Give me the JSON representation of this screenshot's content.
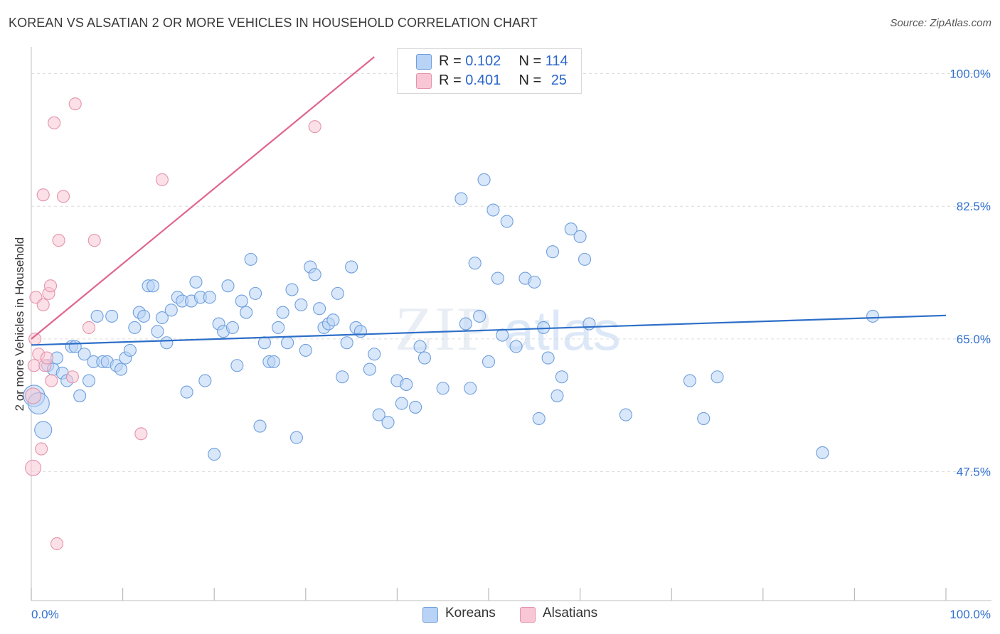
{
  "header": {
    "title": "KOREAN VS ALSATIAN 2 OR MORE VEHICLES IN HOUSEHOLD CORRELATION CHART",
    "source": "Source: ZipAtlas.com"
  },
  "legend": {
    "rows": [
      {
        "r_label": "R =",
        "r_value": "0.102",
        "n_label": "N =",
        "n_value": "114"
      },
      {
        "r_label": "R =",
        "r_value": "0.401",
        "n_label": "N =",
        "n_value": "25"
      }
    ]
  },
  "colors": {
    "korean_fill": "#b8d3f5",
    "korean_stroke": "#6f9fdc",
    "korean_line": "#2d6fc8",
    "alsatian_fill": "#f8c6d4",
    "alsatian_stroke": "#e493ac",
    "alsatian_line": "#e0658d",
    "tick_label": "#2f6fd0",
    "grid": "#dcdcdc"
  },
  "chart_data": {
    "type": "scatter",
    "title": "KOREAN VS ALSATIAN 2 OR MORE VEHICLES IN HOUSEHOLD CORRELATION CHART",
    "xlabel": "",
    "ylabel": "2 or more Vehicles in Household",
    "x_tick_labels": [
      "0.0%",
      "100.0%"
    ],
    "y_tick_labels": [
      "100.0%",
      "82.5%",
      "65.0%",
      "47.5%"
    ],
    "y_ticks": [
      100.0,
      82.5,
      65.0,
      47.5
    ],
    "xlim": [
      0,
      100
    ],
    "ylim": [
      30.5,
      102.2
    ],
    "grid": "horizontal dashed",
    "legend_position": "top-center",
    "series": [
      {
        "name": "Koreans",
        "stats": {
          "R": 0.102,
          "N": 114
        },
        "trend": {
          "x": [
            0,
            100
          ],
          "y": [
            64.2,
            68.1
          ]
        },
        "points": [
          {
            "x": 0.3,
            "y": 57.5,
            "s": "xl"
          },
          {
            "x": 0.8,
            "y": 56.5,
            "s": "xl"
          },
          {
            "x": 1.3,
            "y": 53.0,
            "s": "l"
          },
          {
            "x": 1.8,
            "y": 61.5
          },
          {
            "x": 2.4,
            "y": 61.0
          },
          {
            "x": 2.8,
            "y": 62.5
          },
          {
            "x": 3.4,
            "y": 60.5
          },
          {
            "x": 3.9,
            "y": 59.5
          },
          {
            "x": 4.4,
            "y": 64.0
          },
          {
            "x": 4.8,
            "y": 64.0
          },
          {
            "x": 5.3,
            "y": 57.5
          },
          {
            "x": 5.8,
            "y": 63.0
          },
          {
            "x": 6.3,
            "y": 59.5
          },
          {
            "x": 6.8,
            "y": 62.0
          },
          {
            "x": 7.2,
            "y": 68.0
          },
          {
            "x": 7.8,
            "y": 62.0
          },
          {
            "x": 8.3,
            "y": 62.0
          },
          {
            "x": 8.8,
            "y": 68.0
          },
          {
            "x": 9.3,
            "y": 61.5
          },
          {
            "x": 9.8,
            "y": 61.0
          },
          {
            "x": 10.3,
            "y": 62.5
          },
          {
            "x": 10.8,
            "y": 63.5
          },
          {
            "x": 11.3,
            "y": 66.5
          },
          {
            "x": 11.8,
            "y": 68.5
          },
          {
            "x": 12.3,
            "y": 68.0
          },
          {
            "x": 12.8,
            "y": 72.0
          },
          {
            "x": 13.3,
            "y": 72.0
          },
          {
            "x": 13.8,
            "y": 66.0
          },
          {
            "x": 14.3,
            "y": 67.8
          },
          {
            "x": 14.8,
            "y": 64.5
          },
          {
            "x": 15.3,
            "y": 68.8
          },
          {
            "x": 16.0,
            "y": 70.5
          },
          {
            "x": 16.5,
            "y": 70.0
          },
          {
            "x": 17.0,
            "y": 58.0
          },
          {
            "x": 17.5,
            "y": 70.0
          },
          {
            "x": 18.0,
            "y": 72.5
          },
          {
            "x": 18.5,
            "y": 70.5
          },
          {
            "x": 19.0,
            "y": 59.5
          },
          {
            "x": 19.5,
            "y": 70.5
          },
          {
            "x": 20.0,
            "y": 49.8
          },
          {
            "x": 20.5,
            "y": 67.0
          },
          {
            "x": 21.0,
            "y": 66.0
          },
          {
            "x": 21.5,
            "y": 72.0
          },
          {
            "x": 22.0,
            "y": 66.5
          },
          {
            "x": 22.5,
            "y": 61.5
          },
          {
            "x": 23.0,
            "y": 70.0
          },
          {
            "x": 23.5,
            "y": 68.5
          },
          {
            "x": 24.0,
            "y": 75.5
          },
          {
            "x": 24.5,
            "y": 71.0
          },
          {
            "x": 25.0,
            "y": 53.5
          },
          {
            "x": 25.5,
            "y": 64.5
          },
          {
            "x": 26.0,
            "y": 62.0
          },
          {
            "x": 26.5,
            "y": 62.0
          },
          {
            "x": 27.0,
            "y": 66.5
          },
          {
            "x": 27.5,
            "y": 68.5
          },
          {
            "x": 28.0,
            "y": 64.5
          },
          {
            "x": 28.5,
            "y": 71.5
          },
          {
            "x": 29.0,
            "y": 52.0
          },
          {
            "x": 29.5,
            "y": 69.5
          },
          {
            "x": 30.0,
            "y": 63.5
          },
          {
            "x": 30.5,
            "y": 74.5
          },
          {
            "x": 31.0,
            "y": 73.5
          },
          {
            "x": 31.5,
            "y": 69.0
          },
          {
            "x": 32.0,
            "y": 66.5
          },
          {
            "x": 32.5,
            "y": 67.0
          },
          {
            "x": 33.0,
            "y": 67.5
          },
          {
            "x": 33.5,
            "y": 71.0
          },
          {
            "x": 34.0,
            "y": 60.0
          },
          {
            "x": 34.5,
            "y": 64.5
          },
          {
            "x": 35.0,
            "y": 74.5
          },
          {
            "x": 35.5,
            "y": 66.5
          },
          {
            "x": 36.0,
            "y": 66.0
          },
          {
            "x": 37.0,
            "y": 61.0
          },
          {
            "x": 37.5,
            "y": 63.0
          },
          {
            "x": 38.0,
            "y": 55.0
          },
          {
            "x": 39.0,
            "y": 54.0
          },
          {
            "x": 40.0,
            "y": 59.5
          },
          {
            "x": 40.5,
            "y": 56.5
          },
          {
            "x": 41.0,
            "y": 59.0
          },
          {
            "x": 42.0,
            "y": 56.0
          },
          {
            "x": 42.5,
            "y": 64.0
          },
          {
            "x": 43.0,
            "y": 62.5
          },
          {
            "x": 45.0,
            "y": 58.5
          },
          {
            "x": 47.5,
            "y": 67.0
          },
          {
            "x": 48.0,
            "y": 58.5
          },
          {
            "x": 47.0,
            "y": 83.5
          },
          {
            "x": 48.5,
            "y": 75.0
          },
          {
            "x": 49.0,
            "y": 68.0
          },
          {
            "x": 49.5,
            "y": 86.0
          },
          {
            "x": 50.0,
            "y": 62.0
          },
          {
            "x": 50.5,
            "y": 82.0
          },
          {
            "x": 51.0,
            "y": 73.0
          },
          {
            "x": 51.5,
            "y": 65.5
          },
          {
            "x": 52.0,
            "y": 80.5
          },
          {
            "x": 53.0,
            "y": 64.0
          },
          {
            "x": 54.0,
            "y": 73.0
          },
          {
            "x": 55.0,
            "y": 72.5
          },
          {
            "x": 55.5,
            "y": 54.5
          },
          {
            "x": 56.0,
            "y": 66.5
          },
          {
            "x": 56.5,
            "y": 62.5
          },
          {
            "x": 57.0,
            "y": 76.5
          },
          {
            "x": 57.5,
            "y": 57.5
          },
          {
            "x": 58.0,
            "y": 60.0
          },
          {
            "x": 59.0,
            "y": 79.5
          },
          {
            "x": 60.0,
            "y": 78.5
          },
          {
            "x": 60.5,
            "y": 75.5
          },
          {
            "x": 61.0,
            "y": 67.0
          },
          {
            "x": 65.0,
            "y": 55.0
          },
          {
            "x": 72.0,
            "y": 59.5
          },
          {
            "x": 73.5,
            "y": 54.5
          },
          {
            "x": 75.0,
            "y": 60.0
          },
          {
            "x": 86.5,
            "y": 50.0
          },
          {
            "x": 92.0,
            "y": 68.0
          }
        ]
      },
      {
        "name": "Alsatians",
        "stats": {
          "R": 0.401,
          "N": 25
        },
        "trend": {
          "x": [
            0,
            37.5
          ],
          "y": [
            65.0,
            102.2
          ]
        },
        "points": [
          {
            "x": 0.2,
            "y": 48.0,
            "s": "m"
          },
          {
            "x": 0.2,
            "y": 57.5,
            "s": "m"
          },
          {
            "x": 0.3,
            "y": 61.5
          },
          {
            "x": 0.4,
            "y": 65.0
          },
          {
            "x": 0.5,
            "y": 70.5
          },
          {
            "x": 0.8,
            "y": 63.0
          },
          {
            "x": 1.1,
            "y": 50.5
          },
          {
            "x": 1.3,
            "y": 69.5
          },
          {
            "x": 1.3,
            "y": 84.0
          },
          {
            "x": 1.5,
            "y": 61.5
          },
          {
            "x": 1.7,
            "y": 62.5
          },
          {
            "x": 1.9,
            "y": 71.0
          },
          {
            "x": 2.1,
            "y": 72.0
          },
          {
            "x": 2.2,
            "y": 59.5
          },
          {
            "x": 2.5,
            "y": 93.5
          },
          {
            "x": 2.8,
            "y": 38.0
          },
          {
            "x": 3.0,
            "y": 78.0
          },
          {
            "x": 3.5,
            "y": 83.8
          },
          {
            "x": 4.5,
            "y": 60.0
          },
          {
            "x": 4.8,
            "y": 96.0
          },
          {
            "x": 6.3,
            "y": 66.5
          },
          {
            "x": 6.9,
            "y": 78.0
          },
          {
            "x": 12.0,
            "y": 52.5
          },
          {
            "x": 14.3,
            "y": 86.0
          },
          {
            "x": 31.0,
            "y": 93.0
          }
        ]
      }
    ]
  },
  "bottom_legend": {
    "items": [
      {
        "label": "Koreans"
      },
      {
        "label": "Alsatians"
      }
    ]
  }
}
